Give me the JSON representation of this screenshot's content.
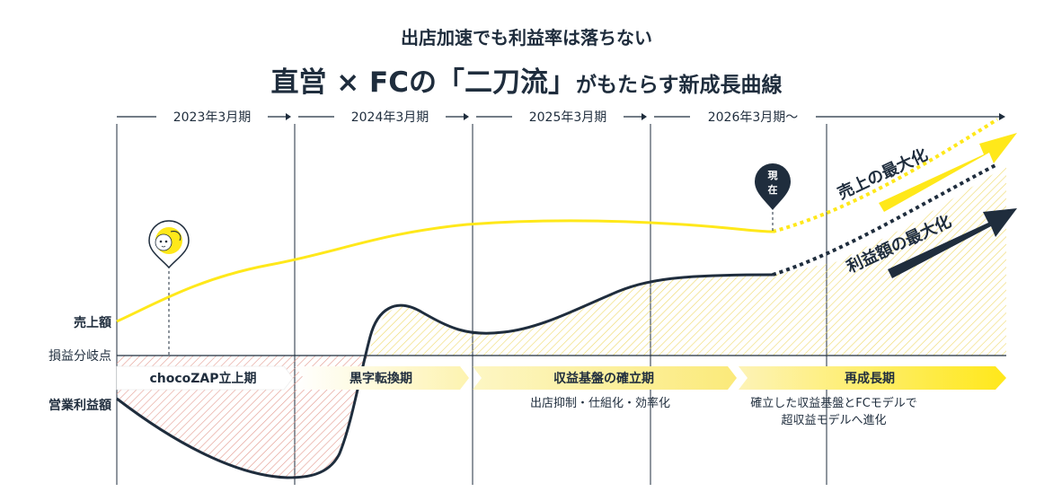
{
  "header": {
    "subtitle": "出店加速でも利益率は落ちない",
    "title_main": "直営 × FCの「二刀流」",
    "title_tail": "がもたらす新成長曲線"
  },
  "periods": [
    "2023年3月期",
    "2024年3月期",
    "2025年3月期",
    "2026年3月期〜"
  ],
  "row_labels": {
    "sales": "売上額",
    "breakeven": "損益分岐点",
    "operating_profit": "営業利益額"
  },
  "phases": [
    {
      "label": "chocoZAP立上期",
      "note": ""
    },
    {
      "label": "黒字転換期",
      "note": ""
    },
    {
      "label": "収益基盤の確立期",
      "note": "出店抑制・仕組化・効率化"
    },
    {
      "label": "再成長期",
      "note_line1": "確立した収益基盤とFCモデルで",
      "note_line2": "超収益モデルへ進化"
    }
  ],
  "markers": {
    "now": [
      "現",
      "在"
    ],
    "mascot_icon": "chocozap-mascot-icon"
  },
  "arrows": {
    "sales_max": "売上の最大化",
    "profit_max": "利益額の最大化"
  },
  "colors": {
    "sales_line": "#ffe81a",
    "profit_line": "#1f2d3d",
    "loss_hatch": "#e8a39a",
    "profit_hatch": "#f3e27a",
    "navy": "#1f2d3d"
  }
}
